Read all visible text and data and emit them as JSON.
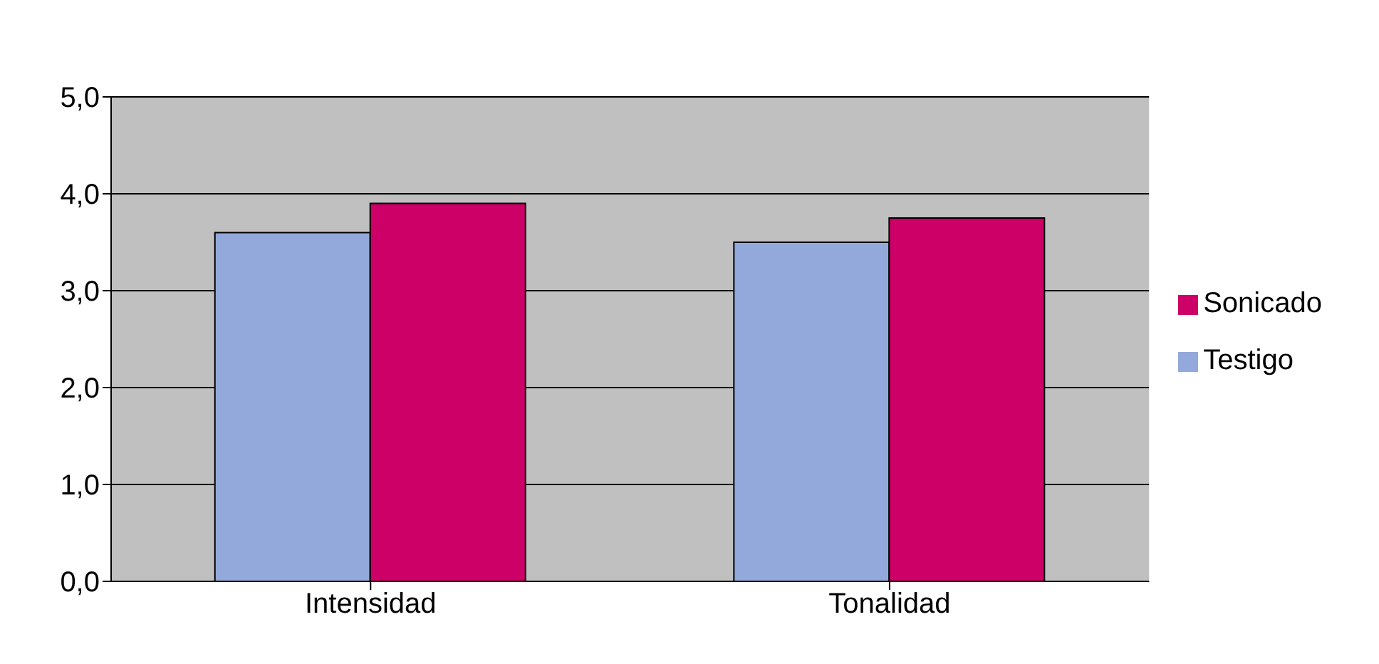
{
  "chart_data": {
    "type": "bar",
    "categories": [
      "Intensidad",
      "Tonalidad"
    ],
    "series": [
      {
        "name": "Testigo",
        "color": "#93a9dc",
        "values": [
          3.6,
          3.5
        ]
      },
      {
        "name": "Sonicado",
        "color": "#cc0066",
        "values": [
          3.9,
          3.75
        ]
      }
    ],
    "ylim": [
      0,
      5
    ],
    "yticks": [
      {
        "value": 0,
        "label": "0,0"
      },
      {
        "value": 1,
        "label": "1,0"
      },
      {
        "value": 2,
        "label": "2,0"
      },
      {
        "value": 3,
        "label": "3,0"
      },
      {
        "value": 4,
        "label": "4,0"
      },
      {
        "value": 5,
        "label": "5,0"
      }
    ],
    "grid": "y",
    "legend": "right"
  }
}
